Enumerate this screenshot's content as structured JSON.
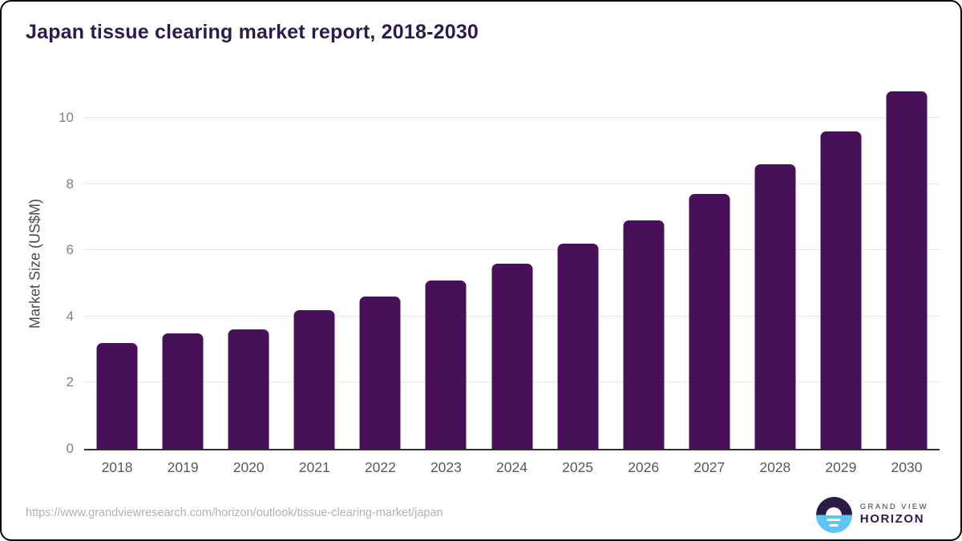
{
  "title": "Japan tissue clearing market report, 2018-2030",
  "chart_data": {
    "type": "bar",
    "title": "Japan tissue clearing market report, 2018-2030",
    "categories": [
      "2018",
      "2019",
      "2020",
      "2021",
      "2022",
      "2023",
      "2024",
      "2025",
      "2026",
      "2027",
      "2028",
      "2029",
      "2030"
    ],
    "values": [
      3.2,
      3.5,
      3.6,
      4.2,
      4.6,
      5.1,
      5.6,
      6.2,
      6.9,
      7.7,
      8.6,
      9.6,
      10.8
    ],
    "xlabel": "",
    "ylabel": "Market Size (US$M)",
    "ylim": [
      0,
      11.1
    ],
    "yticks": [
      0,
      2,
      4,
      6,
      8,
      10
    ],
    "grid": true,
    "legend": false,
    "bar_color": "#49105a"
  },
  "colors": {
    "bar": "#49105a",
    "title_text": "#2e1a4e",
    "gridline": "#e5e5e7",
    "axis_line": "#2f2f2f",
    "y_tick_text": "#808080",
    "x_tick_text": "#55595c",
    "url_text": "#b2b2b4",
    "logo_purple": "#2e1a47",
    "logo_blue": "#5ec6f2"
  },
  "footer": {
    "source_url": "https://www.grandviewresearch.com/horizon/outlook/tissue-clearing-market/japan",
    "logo": {
      "top_text": "GRAND VIEW",
      "bottom_text": "HORIZON"
    }
  }
}
